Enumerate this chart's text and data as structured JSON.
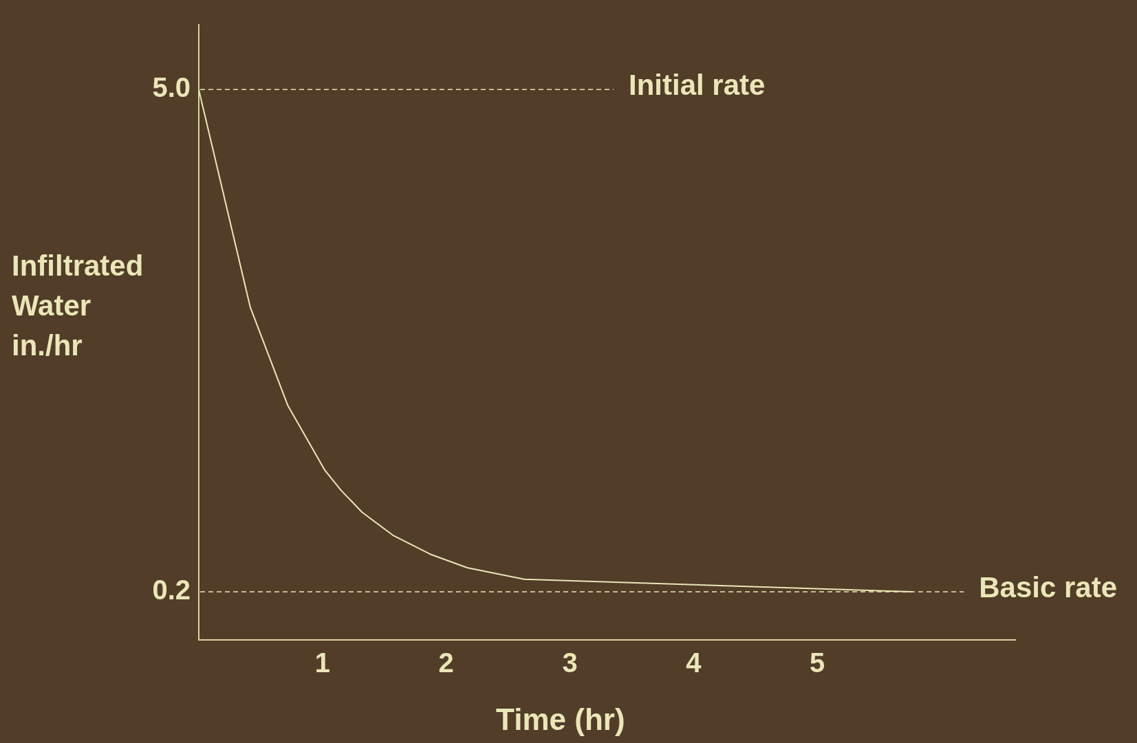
{
  "chart_data": {
    "type": "line",
    "xlabel": "Time (hr)",
    "ylabel": "Infiltrated Water in./hr",
    "xlim": [
      0,
      6.6
    ],
    "xticks": [
      1,
      2,
      3,
      4,
      5
    ],
    "ylim": [
      -0.26,
      5.62
    ],
    "yticks": [
      {
        "value": 0.2,
        "label": "0.2"
      },
      {
        "value": 5,
        "label": "5.0"
      }
    ],
    "grid": false,
    "legend": false,
    "marker": "none",
    "line_style": "solid",
    "series": [
      {
        "color": "#ebe6b8",
        "x": [
          0,
          0.416,
          0.72,
          1.02,
          1.15,
          1.32,
          1.57,
          1.87,
          2.17,
          2.63,
          5.77
        ],
        "values": [
          5.0,
          2.92,
          1.98,
          1.36,
          1.17,
          0.96,
          0.74,
          0.56,
          0.43,
          0.32,
          0.2
        ]
      }
    ],
    "ref_lines": [
      {
        "axis": "y",
        "value": 5,
        "label": "Initial rate",
        "color": "#ebe6b8",
        "line_style": "dashed"
      },
      {
        "axis": "y",
        "value": 0.2,
        "label": "Basic rate",
        "color": "#ebe6b8",
        "line_style": "dashed"
      }
    ]
  }
}
